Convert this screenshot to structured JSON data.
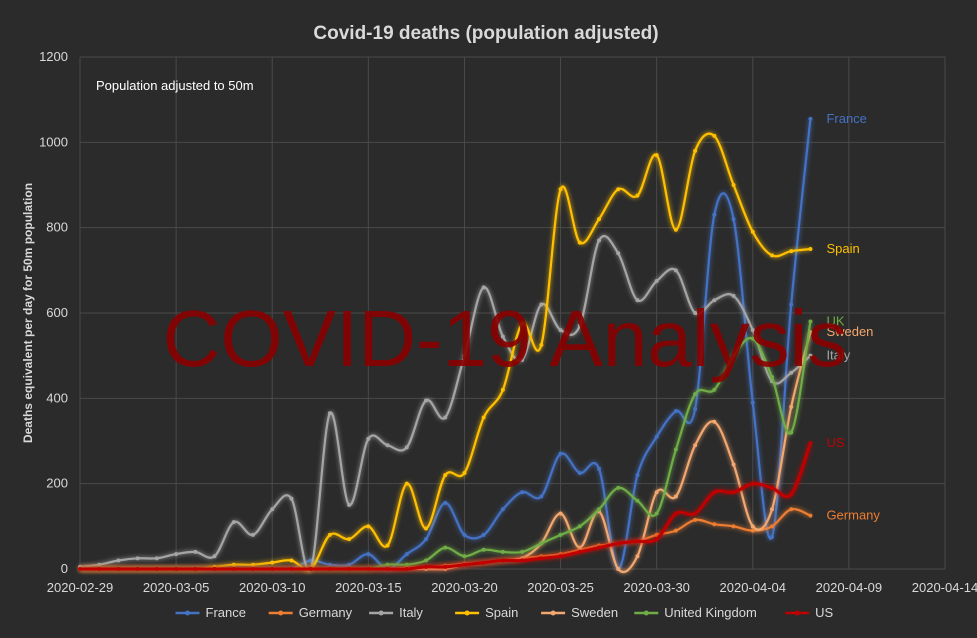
{
  "chart_data": {
    "type": "line",
    "title": "Covid-19 deaths  (population adjusted)",
    "annotation": "Population adjusted to 50m",
    "watermark": "COVID-19 Analysis",
    "ylabel": "Deaths equivalent per day for 50m population",
    "xlabel": "",
    "x_start": "2020-02-29",
    "x_end": "2020-04-14",
    "x_ticks": [
      "2020-02-29",
      "2020-03-05",
      "2020-03-10",
      "2020-03-15",
      "2020-03-20",
      "2020-03-25",
      "2020-03-30",
      "2020-04-04",
      "2020-04-09",
      "2020-04-14"
    ],
    "ylim": [
      0,
      1200
    ],
    "y_ticks": [
      0,
      200,
      400,
      600,
      800,
      1000,
      1200
    ],
    "grid": true,
    "legend_position": "bottom",
    "background_color": "#2b2b2b",
    "text_color": "#d9d9d9",
    "x": [
      "2020-02-29",
      "2020-03-01",
      "2020-03-02",
      "2020-03-03",
      "2020-03-04",
      "2020-03-05",
      "2020-03-06",
      "2020-03-07",
      "2020-03-08",
      "2020-03-09",
      "2020-03-10",
      "2020-03-11",
      "2020-03-12",
      "2020-03-13",
      "2020-03-14",
      "2020-03-15",
      "2020-03-16",
      "2020-03-17",
      "2020-03-18",
      "2020-03-19",
      "2020-03-20",
      "2020-03-21",
      "2020-03-22",
      "2020-03-23",
      "2020-03-24",
      "2020-03-25",
      "2020-03-26",
      "2020-03-27",
      "2020-03-28",
      "2020-03-29",
      "2020-03-30",
      "2020-03-31",
      "2020-04-01",
      "2020-04-02",
      "2020-04-03",
      "2020-04-04",
      "2020-04-05",
      "2020-04-06",
      "2020-04-07"
    ],
    "series": [
      {
        "name": "France",
        "color": "#4472c4",
        "end_label": "France",
        "values": [
          0,
          0,
          0,
          0,
          0,
          0,
          0,
          0,
          0,
          0,
          0,
          0,
          20,
          10,
          10,
          35,
          0,
          35,
          70,
          155,
          80,
          80,
          140,
          180,
          170,
          270,
          225,
          235,
          0,
          220,
          310,
          370,
          375,
          830,
          820,
          390,
          75,
          620,
          1055
        ]
      },
      {
        "name": "Germany",
        "color": "#ed7d31",
        "end_label": "Germany",
        "values": [
          0,
          0,
          0,
          0,
          0,
          0,
          0,
          0,
          0,
          0,
          0,
          0,
          0,
          0,
          0,
          0,
          0,
          3,
          5,
          8,
          12,
          15,
          20,
          25,
          30,
          35,
          45,
          55,
          60,
          65,
          80,
          90,
          115,
          105,
          100,
          90,
          100,
          140,
          125
        ]
      },
      {
        "name": "Italy",
        "color": "#a5a5a5",
        "end_label": "Italy",
        "values": [
          5,
          10,
          20,
          25,
          25,
          35,
          40,
          30,
          110,
          80,
          140,
          165,
          0,
          365,
          150,
          305,
          290,
          285,
          395,
          355,
          500,
          660,
          545,
          490,
          620,
          560,
          570,
          770,
          740,
          630,
          675,
          700,
          600,
          630,
          640,
          560,
          440,
          460,
          500
        ]
      },
      {
        "name": "Spain",
        "color": "#ffc000",
        "end_label": "Spain",
        "values": [
          0,
          0,
          0,
          0,
          0,
          0,
          0,
          5,
          10,
          10,
          15,
          20,
          0,
          80,
          70,
          100,
          55,
          200,
          95,
          220,
          225,
          355,
          420,
          575,
          525,
          890,
          765,
          820,
          890,
          875,
          970,
          795,
          980,
          1015,
          900,
          790,
          735,
          745,
          750
        ]
      },
      {
        "name": "Sweden",
        "color": "#f4a76e",
        "end_label": "Sweden",
        "values": [
          0,
          0,
          0,
          0,
          0,
          0,
          0,
          0,
          0,
          0,
          0,
          0,
          0,
          0,
          0,
          0,
          0,
          0,
          0,
          0,
          10,
          15,
          20,
          25,
          60,
          130,
          50,
          135,
          0,
          30,
          180,
          170,
          290,
          345,
          245,
          100,
          140,
          380,
          555
        ]
      },
      {
        "name": "United Kingdom",
        "color": "#70ad47",
        "end_label": "UK",
        "values": [
          0,
          0,
          0,
          0,
          0,
          0,
          0,
          0,
          0,
          0,
          0,
          0,
          0,
          0,
          0,
          0,
          10,
          10,
          20,
          50,
          30,
          45,
          40,
          40,
          60,
          80,
          100,
          140,
          190,
          160,
          130,
          280,
          410,
          420,
          500,
          540,
          450,
          320,
          580
        ]
      },
      {
        "name": "US",
        "color": "#c00000",
        "end_label": "US",
        "values": [
          0,
          0,
          0,
          0,
          0,
          0,
          0,
          0,
          0,
          0,
          0,
          0,
          0,
          0,
          0,
          0,
          0,
          0,
          5,
          5,
          10,
          15,
          20,
          20,
          25,
          30,
          40,
          50,
          60,
          65,
          70,
          130,
          130,
          180,
          180,
          200,
          190,
          175,
          295
        ]
      }
    ]
  }
}
